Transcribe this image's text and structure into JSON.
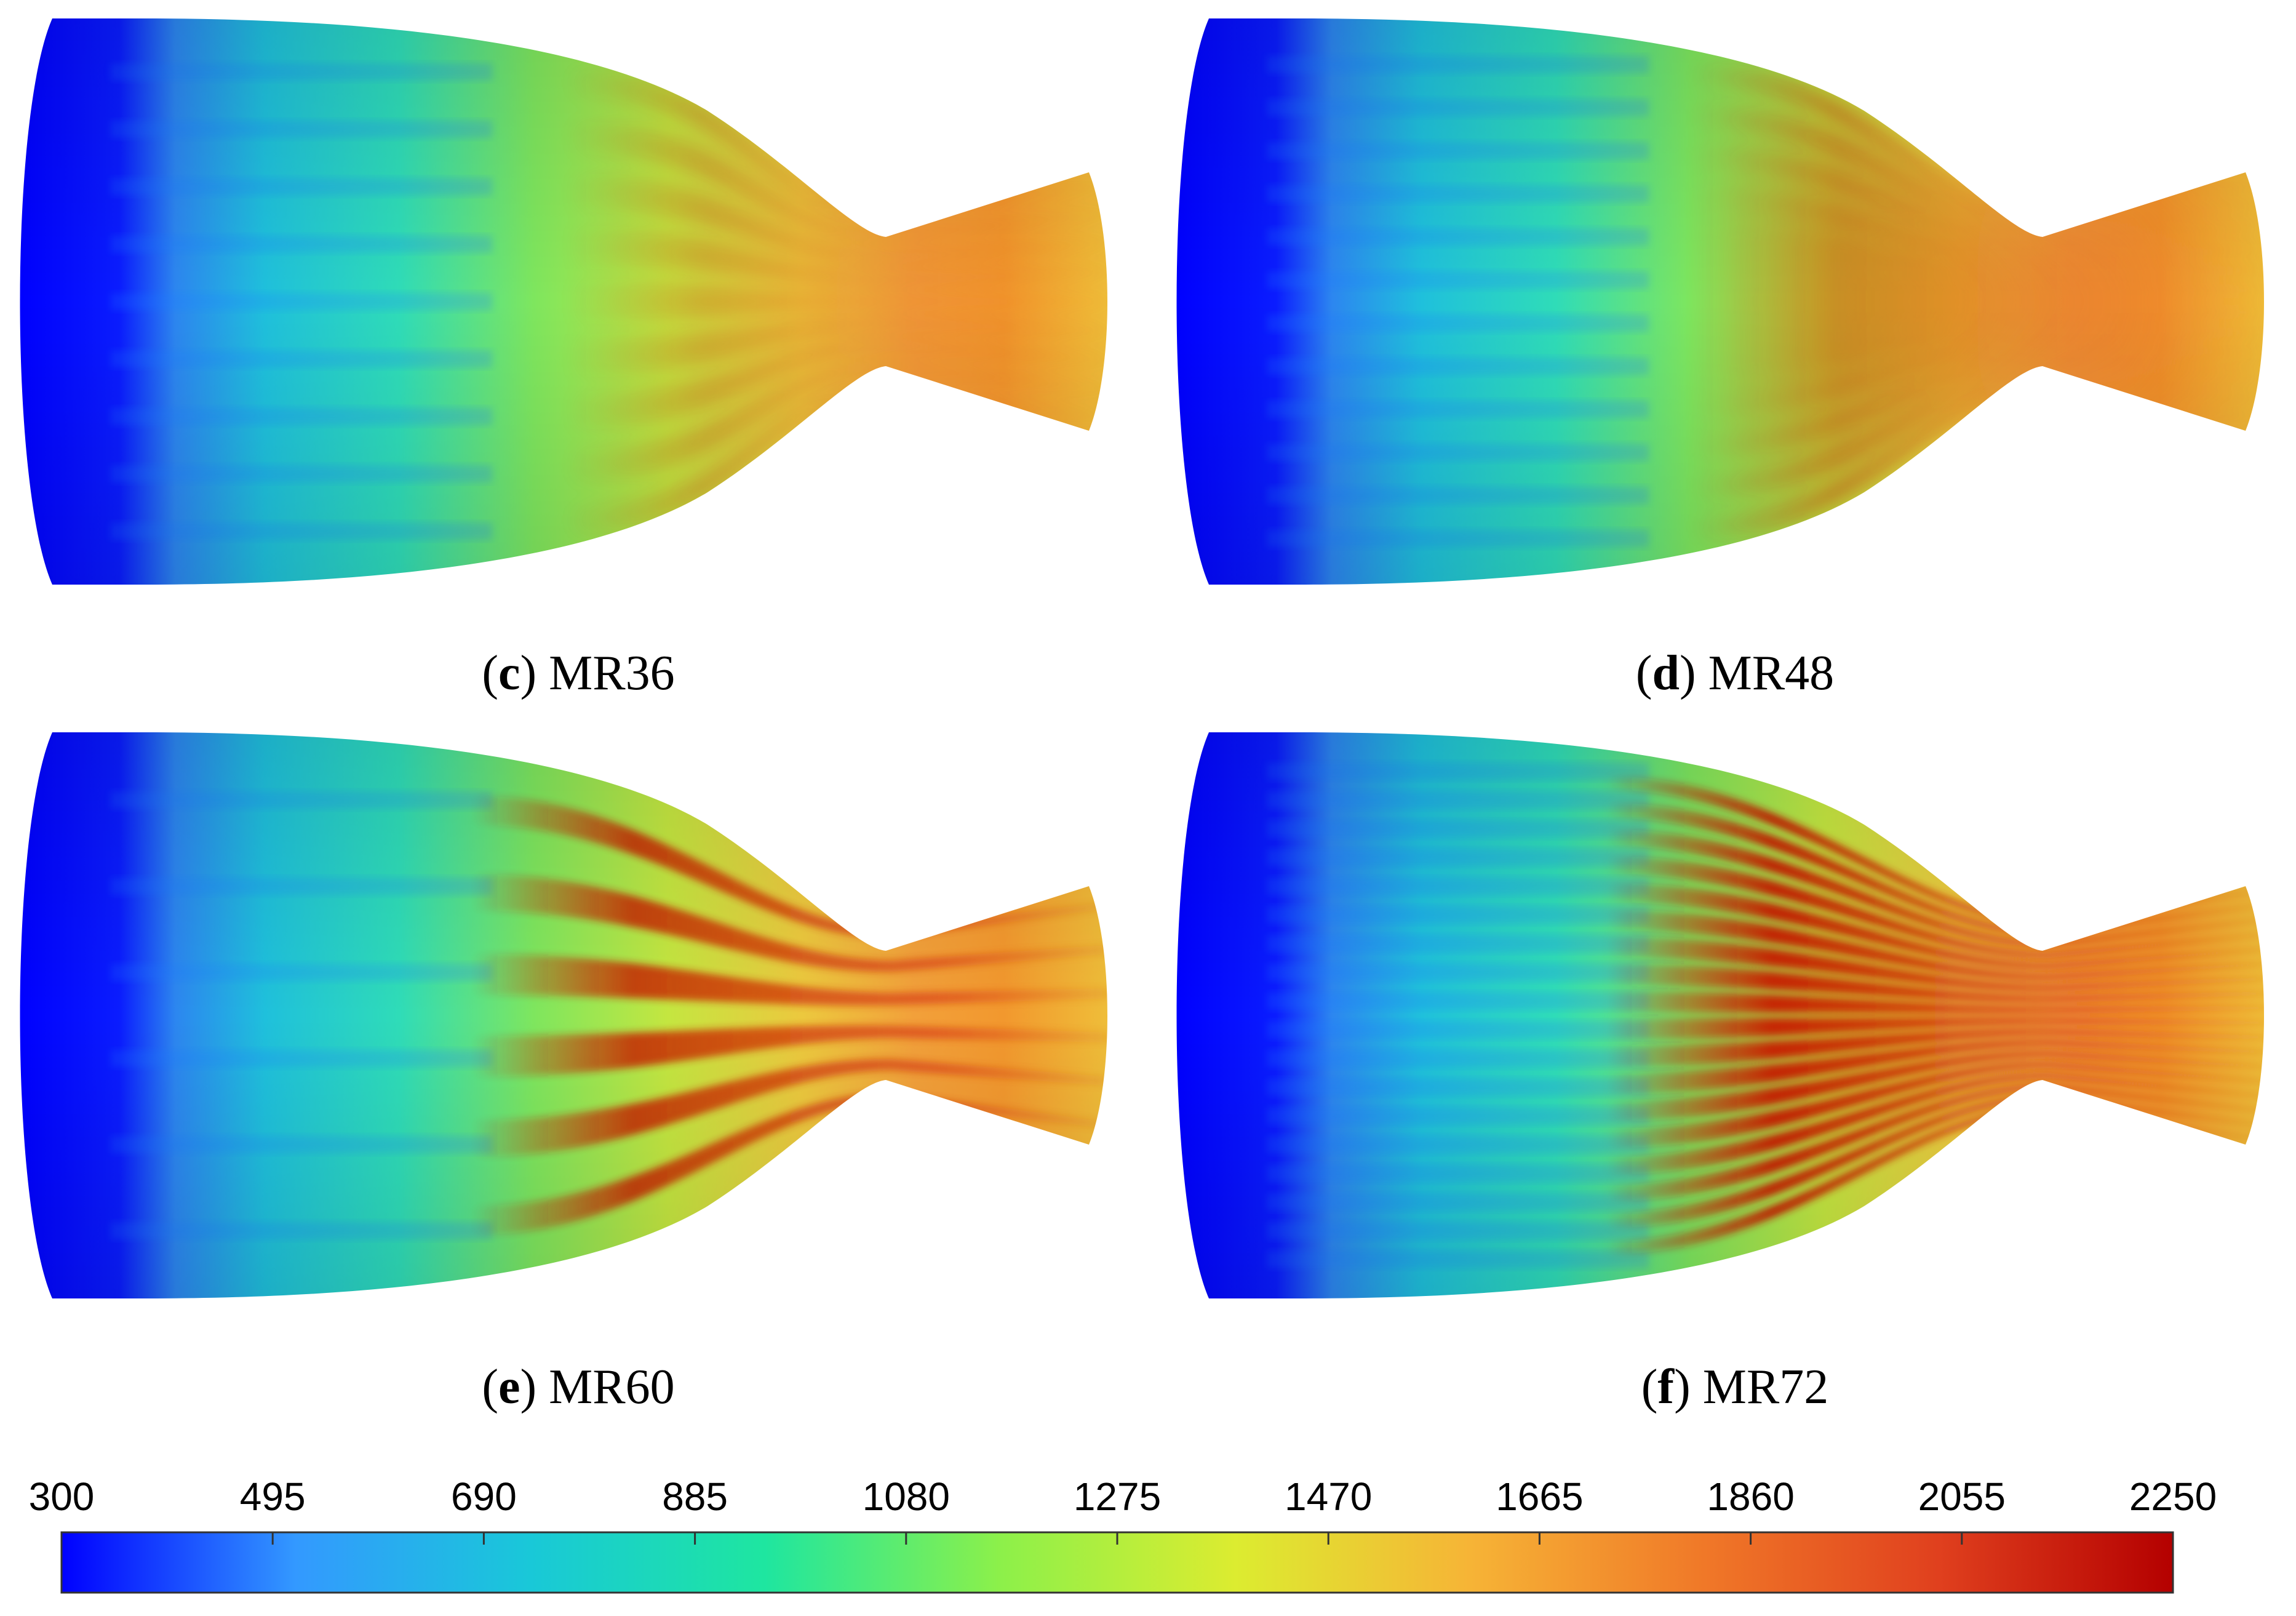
{
  "panels": [
    {
      "id": "c",
      "letter": "c",
      "name": "MR36",
      "streaks": 9,
      "hot_strength": 0.25
    },
    {
      "id": "d",
      "letter": "d",
      "name": "MR48",
      "streaks": 12,
      "hot_strength": 0.45
    },
    {
      "id": "e",
      "letter": "e",
      "name": "MR60",
      "streaks": 6,
      "hot_strength": 0.85
    },
    {
      "id": "f",
      "letter": "f",
      "name": "MR72",
      "streaks": 18,
      "hot_strength": 1.0
    }
  ],
  "colorbar": {
    "min": 300,
    "max": 2250,
    "ticks": [
      "300",
      "495",
      "690",
      "885",
      "1080",
      "1275",
      "1470",
      "1665",
      "1860",
      "2055",
      "2250"
    ],
    "colormap": [
      "#0000ff",
      "#3399ff",
      "#19c8d8",
      "#1ee6a0",
      "#8cf04a",
      "#dcec30",
      "#f6b436",
      "#f07828",
      "#e0401e",
      "#b40000"
    ]
  }
}
